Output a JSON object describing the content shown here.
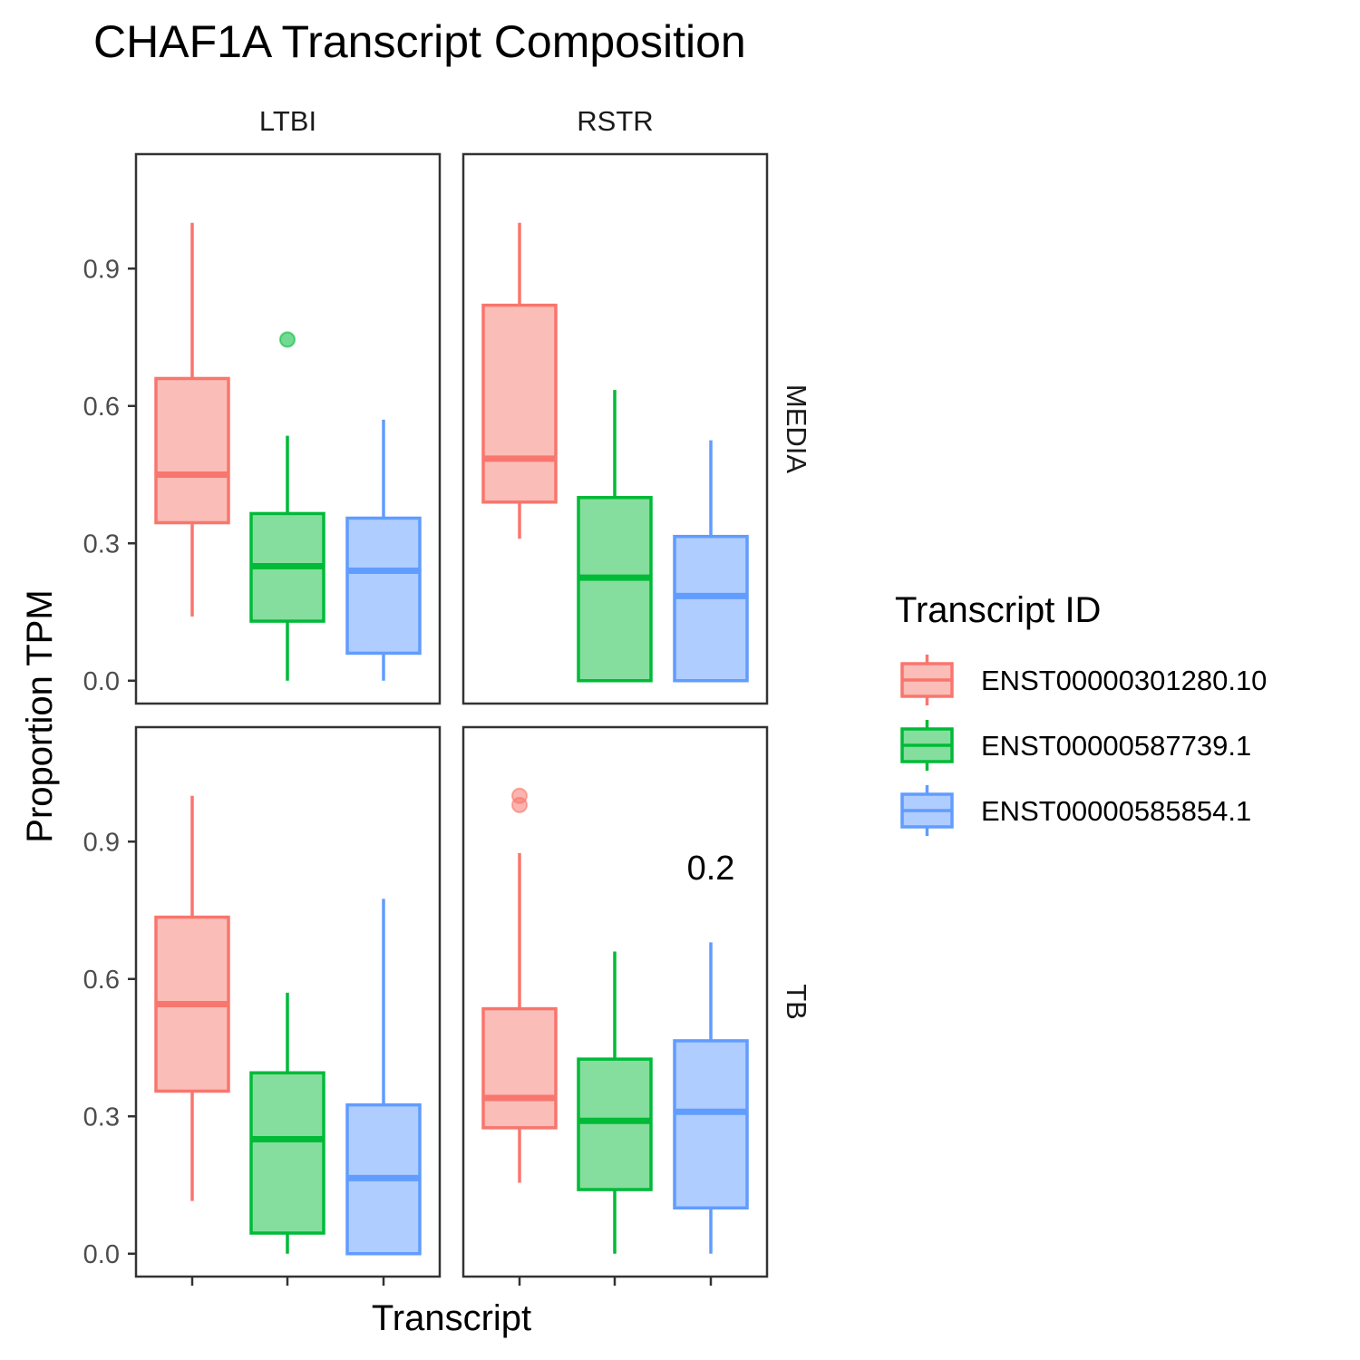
{
  "chart_data": {
    "type": "boxplot",
    "title": "CHAF1A Transcript Composition",
    "xlabel": "Transcript",
    "ylabel": "Proportion TPM",
    "ylim": [
      -0.05,
      1.15
    ],
    "yticks": [
      "0.0",
      "0.3",
      "0.6",
      "0.9"
    ],
    "ytick_values": [
      0.0,
      0.3,
      0.6,
      0.9
    ],
    "grid": false,
    "legend": {
      "title": "Transcript ID",
      "position": "right"
    },
    "col_facets": [
      "LTBI",
      "RSTR"
    ],
    "row_facets": [
      "MEDIA",
      "TB"
    ],
    "series": [
      {
        "name": "ENST00000301280.10",
        "color": "#F8766D",
        "fill": "#FBBDB8"
      },
      {
        "name": "ENST00000587739.1",
        "color": "#00BA38",
        "fill": "#85DE9D"
      },
      {
        "name": "ENST00000585854.1",
        "color": "#619CFF",
        "fill": "#B0CDFF"
      }
    ],
    "panels": [
      {
        "col": "LTBI",
        "row": "MEDIA",
        "boxes": [
          {
            "series": 0,
            "whisker_low": 0.14,
            "q1": 0.345,
            "median": 0.45,
            "q3": 0.66,
            "whisker_high": 1.0,
            "outliers": []
          },
          {
            "series": 1,
            "whisker_low": 0.0,
            "q1": 0.13,
            "median": 0.25,
            "q3": 0.365,
            "whisker_high": 0.535,
            "outliers": [
              0.745
            ]
          },
          {
            "series": 2,
            "whisker_low": 0.0,
            "q1": 0.06,
            "median": 0.24,
            "q3": 0.355,
            "whisker_high": 0.57,
            "outliers": []
          }
        ]
      },
      {
        "col": "RSTR",
        "row": "MEDIA",
        "boxes": [
          {
            "series": 0,
            "whisker_low": 0.31,
            "q1": 0.39,
            "median": 0.485,
            "q3": 0.82,
            "whisker_high": 1.0,
            "outliers": []
          },
          {
            "series": 1,
            "whisker_low": 0.0,
            "q1": 0.0,
            "median": 0.225,
            "q3": 0.4,
            "whisker_high": 0.635,
            "outliers": []
          },
          {
            "series": 2,
            "whisker_low": 0.0,
            "q1": 0.0,
            "median": 0.185,
            "q3": 0.315,
            "whisker_high": 0.525,
            "outliers": []
          }
        ]
      },
      {
        "col": "LTBI",
        "row": "TB",
        "boxes": [
          {
            "series": 0,
            "whisker_low": 0.115,
            "q1": 0.355,
            "median": 0.545,
            "q3": 0.735,
            "whisker_high": 1.0,
            "outliers": []
          },
          {
            "series": 1,
            "whisker_low": 0.0,
            "q1": 0.045,
            "median": 0.25,
            "q3": 0.395,
            "whisker_high": 0.57,
            "outliers": []
          },
          {
            "series": 2,
            "whisker_low": 0.0,
            "q1": 0.0,
            "median": 0.165,
            "q3": 0.325,
            "whisker_high": 0.775,
            "outliers": []
          }
        ]
      },
      {
        "col": "RSTR",
        "row": "TB",
        "annotation": "0.2",
        "boxes": [
          {
            "series": 0,
            "whisker_low": 0.155,
            "q1": 0.275,
            "median": 0.34,
            "q3": 0.535,
            "whisker_high": 0.875,
            "outliers": [
              1.0,
              0.98
            ]
          },
          {
            "series": 1,
            "whisker_low": 0.0,
            "q1": 0.14,
            "median": 0.29,
            "q3": 0.425,
            "whisker_high": 0.66,
            "outliers": []
          },
          {
            "series": 2,
            "whisker_low": 0.0,
            "q1": 0.1,
            "median": 0.31,
            "q3": 0.465,
            "whisker_high": 0.68,
            "outliers": []
          }
        ]
      }
    ]
  }
}
